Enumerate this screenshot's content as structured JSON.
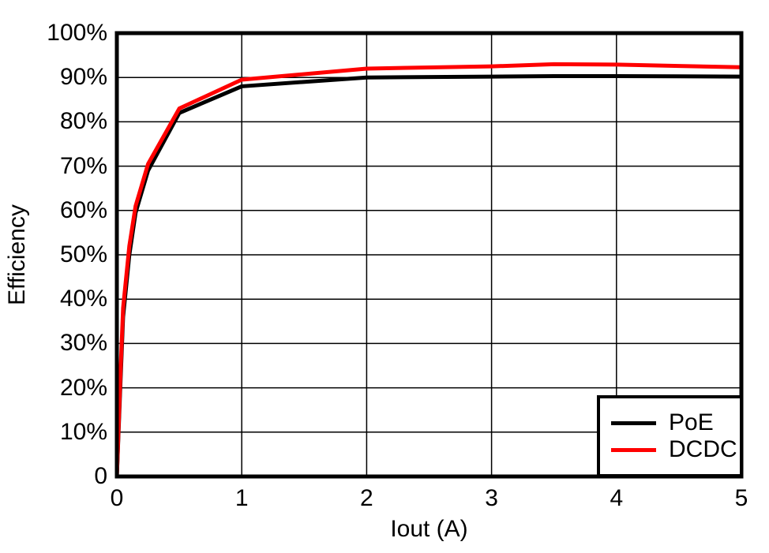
{
  "chart_data": {
    "type": "line",
    "title": "",
    "xlabel": "Iout (A)",
    "ylabel": "Efficiency",
    "xlim": [
      0,
      5
    ],
    "ylim": [
      0,
      100
    ],
    "x_ticks": [
      0,
      1,
      2,
      3,
      4,
      5
    ],
    "x_tick_labels": [
      "0",
      "1",
      "2",
      "3",
      "4",
      "5"
    ],
    "y_ticks": [
      0,
      10,
      20,
      30,
      40,
      50,
      60,
      70,
      80,
      90,
      100
    ],
    "y_tick_labels": [
      "0",
      "10%",
      "20%",
      "30%",
      "40%",
      "50%",
      "60%",
      "70%",
      "80%",
      "90%",
      "100%"
    ],
    "grid": true,
    "background_color": "#ffffff",
    "axis_color": "#000000",
    "grid_color": "#000000",
    "x": [
      0,
      0.03,
      0.05,
      0.1,
      0.15,
      0.25,
      0.5,
      1,
      2,
      3,
      3.5,
      4,
      4.5,
      5
    ],
    "series": [
      {
        "name": "PoE",
        "color": "#000000",
        "values": [
          0,
          22,
          36,
          50,
          59.5,
          69,
          82,
          88,
          90,
          90.2,
          90.3,
          90.3,
          90.25,
          90.2
        ]
      },
      {
        "name": "DCDC",
        "color": "#ff0000",
        "values": [
          0,
          24,
          38,
          52,
          61,
          70.5,
          83,
          89.5,
          92,
          92.5,
          93,
          92.9,
          92.6,
          92.3
        ]
      }
    ],
    "legend": {
      "position": "bottom-right",
      "entries": [
        {
          "label": "PoE",
          "color": "#000000"
        },
        {
          "label": "DCDC",
          "color": "#ff0000"
        }
      ]
    }
  }
}
